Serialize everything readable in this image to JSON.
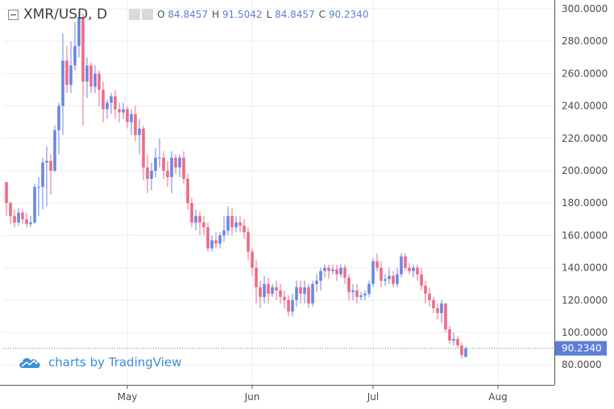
{
  "header": {
    "symbol": "XMR/USD, D",
    "open_label": "O",
    "open_value": "84.8457",
    "high_label": "H",
    "high_value": "91.5042",
    "low_label": "L",
    "low_value": "84.8457",
    "close_label": "C",
    "close_value": "90.2340"
  },
  "watermark": {
    "text": "charts by TradingView"
  },
  "colors": {
    "up": "#6b86e3",
    "down": "#ef6a86",
    "grid": "#e8eef4",
    "last_price": "#5b7fd6"
  },
  "icons": {
    "collapse": "collapse-icon",
    "settings": "gear-icon",
    "brand": "cloud-logo-icon"
  },
  "chart_data": {
    "type": "candlestick",
    "xlabel": "",
    "ylabel": "",
    "ylim": [
      75,
      304
    ],
    "y_ticks": [
      "80.0000",
      "100.0000",
      "120.0000",
      "140.0000",
      "160.0000",
      "180.0000",
      "200.0000",
      "220.0000",
      "240.0000",
      "260.0000",
      "280.0000",
      "300.0000"
    ],
    "y_tick_values": [
      80,
      100,
      120,
      140,
      160,
      180,
      200,
      220,
      240,
      260,
      280,
      300
    ],
    "x_ticks": [
      {
        "label": "May",
        "day": 30
      },
      {
        "label": "Jun",
        "day": 61
      },
      {
        "label": "Jul",
        "day": 91
      },
      {
        "label": "Aug",
        "day": 122
      }
    ],
    "last_price": "90.2340",
    "last_price_value": 90.234,
    "grid": true,
    "candles": [
      [
        0,
        193,
        193,
        172,
        180
      ],
      [
        1,
        180,
        181,
        167,
        172
      ],
      [
        2,
        172,
        176,
        165,
        168
      ],
      [
        3,
        168,
        177,
        166,
        174
      ],
      [
        4,
        174,
        176,
        167,
        170
      ],
      [
        5,
        170,
        174,
        165,
        167
      ],
      [
        6,
        167,
        172,
        165,
        168
      ],
      [
        7,
        168,
        192,
        167,
        190
      ],
      [
        8,
        190,
        196,
        172,
        190
      ],
      [
        9,
        190,
        208,
        176,
        205
      ],
      [
        10,
        205,
        215,
        178,
        206
      ],
      [
        11,
        206,
        210,
        185,
        200
      ],
      [
        12,
        200,
        228,
        199,
        225
      ],
      [
        13,
        225,
        242,
        210,
        240
      ],
      [
        14,
        240,
        285,
        222,
        268
      ],
      [
        15,
        268,
        277,
        248,
        253
      ],
      [
        16,
        253,
        280,
        248,
        265
      ],
      [
        17,
        265,
        292,
        262,
        277
      ],
      [
        18,
        277,
        298,
        270,
        295
      ],
      [
        19,
        295,
        297,
        228,
        255
      ],
      [
        20,
        255,
        270,
        245,
        265
      ],
      [
        21,
        265,
        267,
        248,
        252
      ],
      [
        22,
        252,
        265,
        248,
        260
      ],
      [
        23,
        260,
        262,
        240,
        250
      ],
      [
        24,
        250,
        255,
        230,
        238
      ],
      [
        25,
        238,
        244,
        232,
        242
      ],
      [
        26,
        242,
        248,
        235,
        246
      ],
      [
        27,
        246,
        250,
        232,
        238
      ],
      [
        28,
        238,
        242,
        230,
        236
      ],
      [
        29,
        236,
        242,
        232,
        238
      ],
      [
        30,
        238,
        240,
        226,
        230
      ],
      [
        31,
        230,
        238,
        222,
        235
      ],
      [
        32,
        235,
        240,
        218,
        222
      ],
      [
        33,
        222,
        232,
        210,
        226
      ],
      [
        34,
        226,
        228,
        194,
        202
      ],
      [
        35,
        202,
        210,
        186,
        195
      ],
      [
        36,
        195,
        205,
        188,
        200
      ],
      [
        37,
        200,
        214,
        196,
        208
      ],
      [
        38,
        208,
        220,
        202,
        208
      ],
      [
        39,
        208,
        212,
        195,
        200
      ],
      [
        40,
        200,
        206,
        190,
        196
      ],
      [
        41,
        196,
        212,
        186,
        208
      ],
      [
        42,
        208,
        210,
        198,
        202
      ],
      [
        43,
        202,
        210,
        196,
        208
      ],
      [
        44,
        208,
        212,
        192,
        195
      ],
      [
        45,
        195,
        198,
        176,
        180
      ],
      [
        46,
        180,
        183,
        165,
        168
      ],
      [
        47,
        168,
        176,
        163,
        172
      ],
      [
        48,
        172,
        175,
        160,
        168
      ],
      [
        49,
        168,
        172,
        160,
        165
      ],
      [
        50,
        165,
        168,
        150,
        152
      ],
      [
        51,
        152,
        160,
        150,
        157
      ],
      [
        52,
        157,
        162,
        152,
        155
      ],
      [
        53,
        155,
        162,
        152,
        160
      ],
      [
        54,
        160,
        172,
        156,
        163
      ],
      [
        55,
        163,
        178,
        160,
        172
      ],
      [
        56,
        172,
        177,
        160,
        165
      ],
      [
        57,
        165,
        172,
        162,
        168
      ],
      [
        58,
        168,
        172,
        162,
        166
      ],
      [
        59,
        166,
        170,
        158,
        162
      ],
      [
        60,
        162,
        165,
        145,
        150
      ],
      [
        61,
        150,
        152,
        135,
        140
      ],
      [
        62,
        140,
        145,
        118,
        128
      ],
      [
        63,
        128,
        132,
        115,
        122
      ],
      [
        64,
        122,
        135,
        118,
        130
      ],
      [
        65,
        130,
        134,
        118,
        124
      ],
      [
        66,
        124,
        130,
        122,
        128
      ],
      [
        67,
        128,
        132,
        120,
        126
      ],
      [
        68,
        126,
        130,
        118,
        122
      ],
      [
        69,
        122,
        126,
        115,
        120
      ],
      [
        70,
        120,
        123,
        110,
        113
      ],
      [
        71,
        113,
        124,
        110,
        120
      ],
      [
        72,
        120,
        132,
        116,
        128
      ],
      [
        73,
        128,
        132,
        118,
        124
      ],
      [
        74,
        124,
        132,
        118,
        128
      ],
      [
        75,
        128,
        130,
        115,
        118
      ],
      [
        76,
        118,
        132,
        116,
        130
      ],
      [
        77,
        130,
        136,
        125,
        132
      ],
      [
        78,
        132,
        140,
        126,
        138
      ],
      [
        79,
        138,
        142,
        134,
        140
      ],
      [
        80,
        140,
        142,
        133,
        138
      ],
      [
        81,
        138,
        142,
        136,
        139
      ],
      [
        82,
        139,
        142,
        132,
        136
      ],
      [
        83,
        136,
        142,
        134,
        140
      ],
      [
        84,
        140,
        142,
        130,
        134
      ],
      [
        85,
        134,
        136,
        120,
        125
      ],
      [
        86,
        125,
        130,
        120,
        126
      ],
      [
        87,
        126,
        130,
        118,
        122
      ],
      [
        88,
        122,
        125,
        120,
        123
      ],
      [
        89,
        123,
        126,
        120,
        124
      ],
      [
        90,
        124,
        132,
        122,
        130
      ],
      [
        91,
        130,
        146,
        128,
        144
      ],
      [
        92,
        144,
        149,
        138,
        140
      ],
      [
        93,
        140,
        144,
        128,
        132
      ],
      [
        94,
        132,
        136,
        129,
        133
      ],
      [
        95,
        133,
        140,
        130,
        135
      ],
      [
        96,
        135,
        138,
        128,
        130
      ],
      [
        97,
        130,
        140,
        128,
        136
      ],
      [
        98,
        136,
        149,
        134,
        147
      ],
      [
        99,
        147,
        149,
        138,
        140
      ],
      [
        100,
        140,
        143,
        136,
        138
      ],
      [
        101,
        138,
        142,
        134,
        140
      ],
      [
        102,
        140,
        142,
        132,
        136
      ],
      [
        103,
        136,
        140,
        126,
        129
      ],
      [
        104,
        129,
        132,
        118,
        124
      ],
      [
        105,
        124,
        128,
        116,
        120
      ],
      [
        106,
        120,
        122,
        112,
        115
      ],
      [
        107,
        115,
        118,
        108,
        112
      ],
      [
        108,
        112,
        120,
        106,
        118
      ],
      [
        109,
        118,
        118,
        100,
        102
      ],
      [
        110,
        102,
        104,
        93,
        95
      ],
      [
        111,
        95,
        100,
        92,
        96
      ],
      [
        112,
        96,
        98,
        90,
        92
      ],
      [
        113,
        92,
        94,
        84,
        86
      ],
      [
        114,
        84.8457,
        91.5042,
        84.8457,
        90.234
      ]
    ]
  }
}
